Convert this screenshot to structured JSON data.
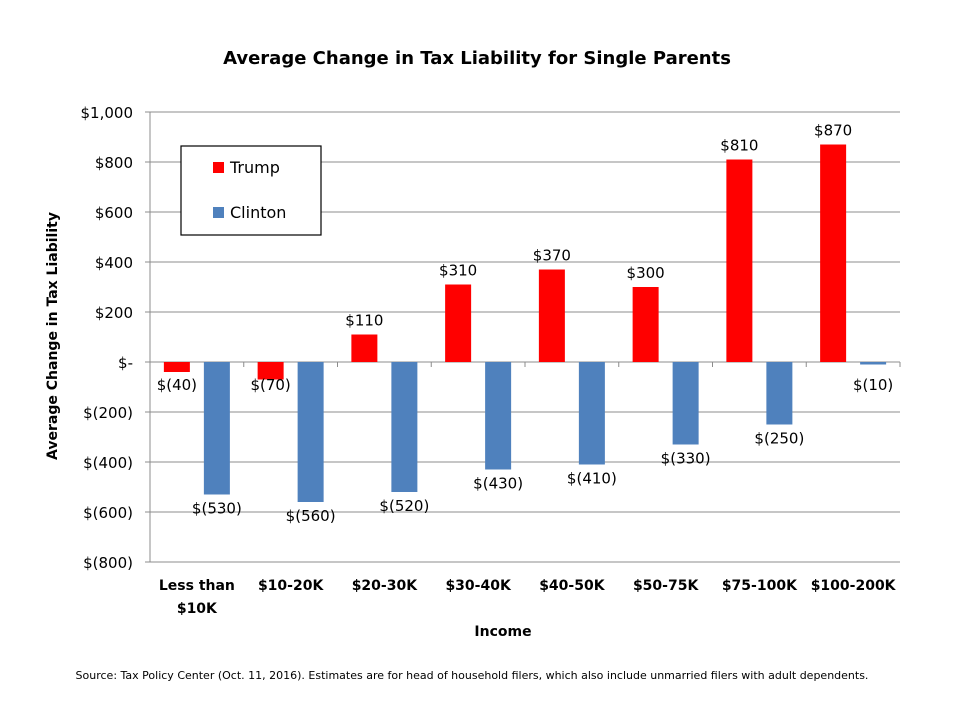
{
  "source_note": "Source: Tax Policy Center (Oct. 11, 2016). Estimates are for head of household filers, which also include unmarried filers with adult dependents.",
  "chart_data": {
    "type": "bar",
    "title": "Average Change in Tax Liability for Single Parents",
    "xlabel": "Income",
    "ylabel": "Average Change in Tax Liability",
    "ylim": [
      -800,
      1000
    ],
    "yticks": [
      1000,
      800,
      600,
      400,
      200,
      0,
      -200,
      -400,
      -600,
      -800
    ],
    "ytick_labels": [
      "$1,000",
      "$800",
      "$600",
      "$400",
      "$200",
      "$-",
      "$(200)",
      "$(400)",
      "$(600)",
      "$(800)"
    ],
    "categories": [
      [
        "Less than",
        "$10K"
      ],
      [
        "$10-20K"
      ],
      [
        "$20-30K"
      ],
      [
        "$30-40K"
      ],
      [
        "$40-50K"
      ],
      [
        "$50-75K"
      ],
      [
        "$75-100K"
      ],
      [
        "$100-200K"
      ]
    ],
    "series": [
      {
        "name": "Trump",
        "color": "#ff0000",
        "values": [
          -40,
          -70,
          110,
          310,
          370,
          300,
          810,
          870
        ],
        "labels": [
          "$(40)",
          "$(70)",
          "$110",
          "$310",
          "$370",
          "$300",
          "$810",
          "$870"
        ]
      },
      {
        "name": "Clinton",
        "color": "#4f81bd",
        "values": [
          -530,
          -560,
          -520,
          -430,
          -410,
          -330,
          -250,
          -10
        ],
        "labels": [
          "$(530)",
          "$(560)",
          "$(520)",
          "$(430)",
          "$(410)",
          "$(330)",
          "$(250)",
          "$(10)"
        ]
      }
    ],
    "grid": true,
    "legend_position": "top-left"
  }
}
